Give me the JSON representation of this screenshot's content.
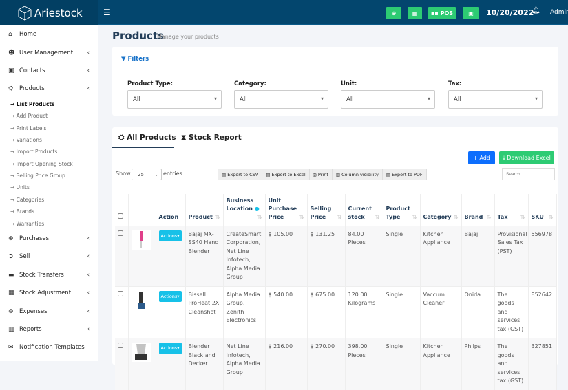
{
  "app": {
    "name": "Ariestock",
    "date": "10/20/2022",
    "user": "Admin",
    "pos_label": "POS"
  },
  "colors": {
    "header": "#03466e",
    "accent": "#2dcb73",
    "primary": "#0d6efd",
    "info": "#17c1e8"
  },
  "sidebar": {
    "items": [
      {
        "label": "Home",
        "icon": "home-icon",
        "chev": false
      },
      {
        "label": "User Management",
        "icon": "users-icon",
        "chev": true
      },
      {
        "label": "Contacts",
        "icon": "address-book-icon",
        "chev": true
      },
      {
        "label": "Products",
        "icon": "cubes-icon",
        "chev": true
      }
    ],
    "sub_items": [
      "List Products",
      "Add Product",
      "Print Labels",
      "Variations",
      "Import Products",
      "Import Opening Stock",
      "Selling Price Group",
      "Units",
      "Categories",
      "Brands",
      "Warranties"
    ],
    "items_after": [
      {
        "label": "Purchases",
        "icon": "plus-circle-icon",
        "chev": true
      },
      {
        "label": "Sell",
        "icon": "arrow-circle-icon",
        "chev": true
      },
      {
        "label": "Stock Transfers",
        "icon": "truck-icon",
        "chev": true
      },
      {
        "label": "Stock Adjustment",
        "icon": "database-icon",
        "chev": true
      },
      {
        "label": "Expenses",
        "icon": "minus-circle-icon",
        "chev": true
      },
      {
        "label": "Reports",
        "icon": "chart-icon",
        "chev": true
      },
      {
        "label": "Notification Templates",
        "icon": "envelope-icon",
        "chev": false
      }
    ]
  },
  "page": {
    "title": "Products",
    "subtitle": "Manage your products"
  },
  "filters": {
    "title": "Filters",
    "fields": [
      {
        "label": "Product Type:",
        "value": "All"
      },
      {
        "label": "Category:",
        "value": "All"
      },
      {
        "label": "Unit:",
        "value": "All"
      },
      {
        "label": "Tax:",
        "value": "All"
      }
    ]
  },
  "tabs": [
    "All Products",
    "Stock Report"
  ],
  "actions": {
    "add": "Add",
    "download": "Download Excel"
  },
  "table_controls": {
    "show": "Show",
    "entries_value": "25",
    "entries": "entries",
    "search_placeholder": "Search ...",
    "exports": [
      "Export to CSV",
      "Export to Excel",
      "Print",
      "Column visibility",
      "Export to PDF"
    ]
  },
  "table": {
    "columns": [
      "",
      "",
      "Action",
      "Product",
      "Business Location",
      "Unit Purchase Price",
      "Selling Price",
      "Current stock",
      "Product Type",
      "Category",
      "Brand",
      "Tax",
      "SKU"
    ],
    "action_label": "Actions",
    "rows": [
      {
        "product": "Bajaj MX-SS40 Hand Blender",
        "location": "CreateSmart Corporation, Net Line Infotech, Alpha Media Group",
        "purchase": "$ 105.00",
        "selling": "$ 131.25",
        "stock": "84.00 Pieces",
        "type": "Single",
        "category": "Kitchen Appliance",
        "brand": "Bajaj",
        "tax": "Provisional Sales Tax (PST)",
        "sku": "556978"
      },
      {
        "product": "Bissell ProHeat 2X Cleanshot",
        "location": "Alpha Media Group, Zenith Electronics",
        "purchase": "$ 540.00",
        "selling": "$ 675.00",
        "stock": "120.00 Kilograms",
        "type": "Single",
        "category": "Vaccum Cleaner",
        "brand": "Onida",
        "tax": "The goods and services tax (GST)",
        "sku": "852642"
      },
      {
        "product": "Blender Black and Decker",
        "location": "Net Line Infotech, Alpha Media Group",
        "purchase": "$ 216.00",
        "selling": "$ 270.00",
        "stock": "398.00 Pieces",
        "type": "Single",
        "category": "Kitchen Appliance",
        "brand": "Philps",
        "tax": "The goods and services tax (GST)",
        "sku": "327851"
      }
    ]
  }
}
